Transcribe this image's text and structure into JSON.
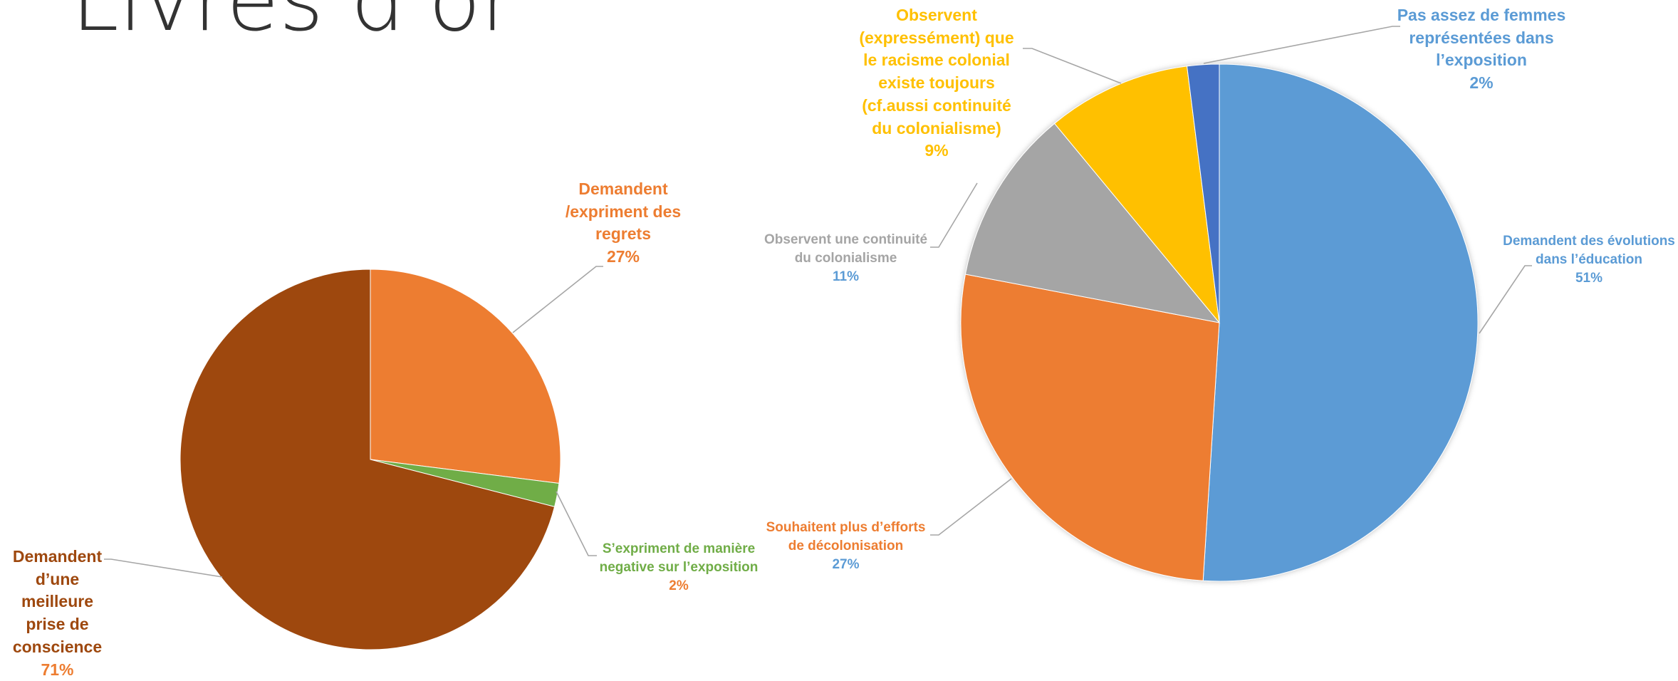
{
  "title": "Livres d'or",
  "chart_data": [
    {
      "type": "pie",
      "title": "",
      "slices": [
        {
          "label": "Demandent /expriment des regrets",
          "value": 27,
          "pct_label": "27%",
          "color": "#ED7D31",
          "label_color": "#ED7D31",
          "pct_color": "#ED7D31"
        },
        {
          "label": "S’expriment de manière negative sur l’exposition",
          "value": 2,
          "pct_label": "2%",
          "color": "#70AD47",
          "label_color": "#70AD47",
          "pct_color": "#ED7D31"
        },
        {
          "label": "Demandent d’une meilleure prise de conscience",
          "value": 71,
          "pct_label": "71%",
          "color": "#9E480E",
          "label_color": "#9E480E",
          "pct_color": "#ED7D31"
        }
      ]
    },
    {
      "type": "pie",
      "title": "",
      "slices": [
        {
          "label": "Demandent des évolutions dans l’éducation",
          "value": 51,
          "pct_label": "51%",
          "color": "#5B9BD5",
          "label_color": "#5B9BD5",
          "pct_color": "#5B9BD5"
        },
        {
          "label": "Souhaitent plus d’efforts de décolonisation",
          "value": 27,
          "pct_label": "27%",
          "color": "#ED7D31",
          "label_color": "#ED7D31",
          "pct_color": "#5B9BD5"
        },
        {
          "label": "Observent une continuité du colonialisme",
          "value": 11,
          "pct_label": "11%",
          "color": "#A5A5A5",
          "label_color": "#A5A5A5",
          "pct_color": "#5B9BD5"
        },
        {
          "label": "Observent (expressément) que le racisme colonial existe toujours (cf.aussi continuité du colonialisme)",
          "value": 9,
          "pct_label": "9%",
          "color": "#FFC000",
          "label_color": "#FFC000",
          "pct_color": "#FFC000"
        },
        {
          "label": "Pas assez de femmes représentées dans l’exposition",
          "value": 2,
          "pct_label": "2%",
          "color": "#4472C4",
          "label_color": "#5B9BD5",
          "pct_color": "#5B9BD5"
        }
      ]
    }
  ]
}
